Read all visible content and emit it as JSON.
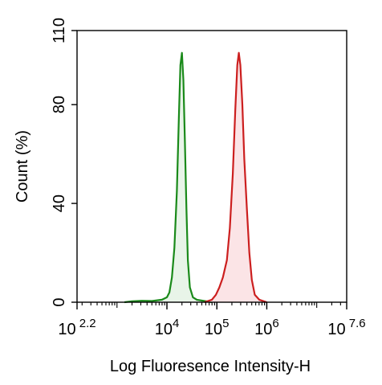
{
  "chart_data": {
    "type": "area",
    "xlabel": "Log Fluoresence Intensity-H",
    "ylabel": "Count  (%)",
    "xscale": "log",
    "xlim_log10": [
      2.2,
      7.6
    ],
    "ylim": [
      0,
      110
    ],
    "x_ticks": [
      {
        "log10": 2.2,
        "base": "10",
        "exp": "2.2"
      },
      {
        "log10": 4,
        "base": "10",
        "exp": "4"
      },
      {
        "log10": 5,
        "base": "10",
        "exp": "5"
      },
      {
        "log10": 6,
        "base": "10",
        "exp": "6"
      },
      {
        "log10": 7.6,
        "base": "10",
        "exp": "7.6"
      }
    ],
    "y_ticks": [
      "0",
      "40",
      "80",
      "110"
    ],
    "legend": "none",
    "grid": false,
    "series": [
      {
        "color": "#1a8a1a",
        "fill": "#e8f4e8",
        "points": [
          [
            3.15,
            0
          ],
          [
            3.3,
            0.4
          ],
          [
            3.5,
            0.6
          ],
          [
            3.7,
            0.5
          ],
          [
            3.9,
            1
          ],
          [
            4.0,
            2
          ],
          [
            4.05,
            4
          ],
          [
            4.1,
            10
          ],
          [
            4.15,
            22
          ],
          [
            4.2,
            45
          ],
          [
            4.24,
            75
          ],
          [
            4.27,
            96
          ],
          [
            4.3,
            101
          ],
          [
            4.33,
            90
          ],
          [
            4.36,
            65
          ],
          [
            4.39,
            38
          ],
          [
            4.42,
            17
          ],
          [
            4.46,
            6
          ],
          [
            4.52,
            2
          ],
          [
            4.6,
            1
          ],
          [
            4.75,
            0.5
          ],
          [
            4.9,
            0
          ]
        ]
      },
      {
        "color": "#cc1f1f",
        "fill": "#fbe4e6",
        "points": [
          [
            4.75,
            0
          ],
          [
            4.9,
            1
          ],
          [
            4.98,
            3
          ],
          [
            5.05,
            6
          ],
          [
            5.12,
            10
          ],
          [
            5.2,
            17
          ],
          [
            5.26,
            30
          ],
          [
            5.32,
            52
          ],
          [
            5.37,
            78
          ],
          [
            5.41,
            96
          ],
          [
            5.44,
            101
          ],
          [
            5.47,
            96
          ],
          [
            5.51,
            80
          ],
          [
            5.55,
            58
          ],
          [
            5.6,
            38
          ],
          [
            5.65,
            20
          ],
          [
            5.7,
            9
          ],
          [
            5.76,
            3
          ],
          [
            5.85,
            1
          ],
          [
            6.0,
            0
          ]
        ]
      }
    ]
  }
}
